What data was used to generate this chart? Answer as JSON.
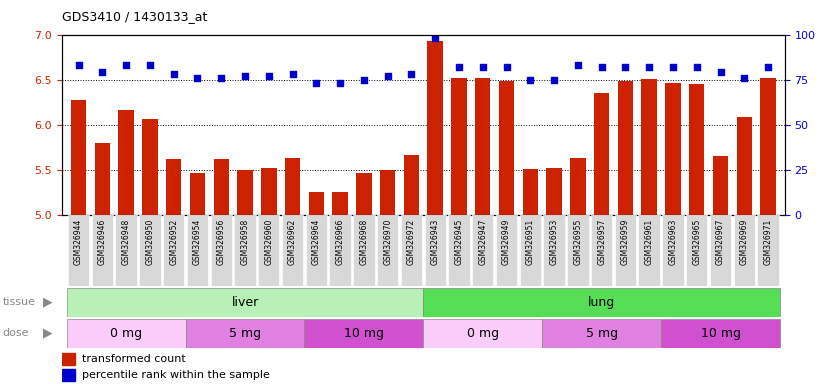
{
  "title": "GDS3410 / 1430133_at",
  "samples": [
    "GSM326944",
    "GSM326946",
    "GSM326948",
    "GSM326950",
    "GSM326952",
    "GSM326954",
    "GSM326956",
    "GSM326958",
    "GSM326960",
    "GSM326962",
    "GSM326964",
    "GSM326966",
    "GSM326968",
    "GSM326970",
    "GSM326972",
    "GSM326943",
    "GSM326945",
    "GSM326947",
    "GSM326949",
    "GSM326951",
    "GSM326953",
    "GSM326955",
    "GSM326957",
    "GSM326959",
    "GSM326961",
    "GSM326963",
    "GSM326965",
    "GSM326967",
    "GSM326969",
    "GSM326971"
  ],
  "transformed_count": [
    6.28,
    5.8,
    6.16,
    6.06,
    5.62,
    5.47,
    5.62,
    5.5,
    5.52,
    5.63,
    5.25,
    5.25,
    5.47,
    5.5,
    5.67,
    6.93,
    6.52,
    6.52,
    6.49,
    5.51,
    5.52,
    5.63,
    6.35,
    6.48,
    6.51,
    6.46,
    6.45,
    5.65,
    6.09,
    6.52
  ],
  "percentile_rank": [
    83,
    79,
    83,
    83,
    78,
    76,
    76,
    77,
    77,
    78,
    73,
    73,
    75,
    77,
    78,
    98,
    82,
    82,
    82,
    75,
    75,
    83,
    82,
    82,
    82,
    82,
    82,
    79,
    76,
    82
  ],
  "ylim_left": [
    5.0,
    7.0
  ],
  "ylim_right": [
    0,
    100
  ],
  "yticks_left": [
    5.0,
    5.5,
    6.0,
    6.5,
    7.0
  ],
  "yticks_right": [
    0,
    25,
    50,
    75,
    100
  ],
  "tissue_groups": [
    {
      "label": "liver",
      "start": 0,
      "end": 14,
      "color": "#b8f0b8"
    },
    {
      "label": "lung",
      "start": 15,
      "end": 29,
      "color": "#55dd55"
    }
  ],
  "dose_groups": [
    {
      "label": "0 mg",
      "start": 0,
      "end": 4,
      "color": "#f9ccf9"
    },
    {
      "label": "5 mg",
      "start": 5,
      "end": 9,
      "color": "#e080e0"
    },
    {
      "label": "10 mg",
      "start": 10,
      "end": 14,
      "color": "#d050d0"
    },
    {
      "label": "0 mg",
      "start": 15,
      "end": 19,
      "color": "#f9ccf9"
    },
    {
      "label": "5 mg",
      "start": 20,
      "end": 24,
      "color": "#e080e0"
    },
    {
      "label": "10 mg",
      "start": 25,
      "end": 29,
      "color": "#d050d0"
    }
  ],
  "bar_color": "#cc2200",
  "dot_color": "#0000cc",
  "bar_width": 0.65,
  "left_axis_color": "#cc2200",
  "right_axis_color": "#0000cc",
  "legend_items": [
    {
      "color": "#cc2200",
      "label": "transformed count"
    },
    {
      "color": "#0000cc",
      "label": "percentile rank within the sample"
    }
  ],
  "tick_bg_color": "#d8d8d8",
  "tissue_label_color": "#888888",
  "dose_label_color": "#888888"
}
